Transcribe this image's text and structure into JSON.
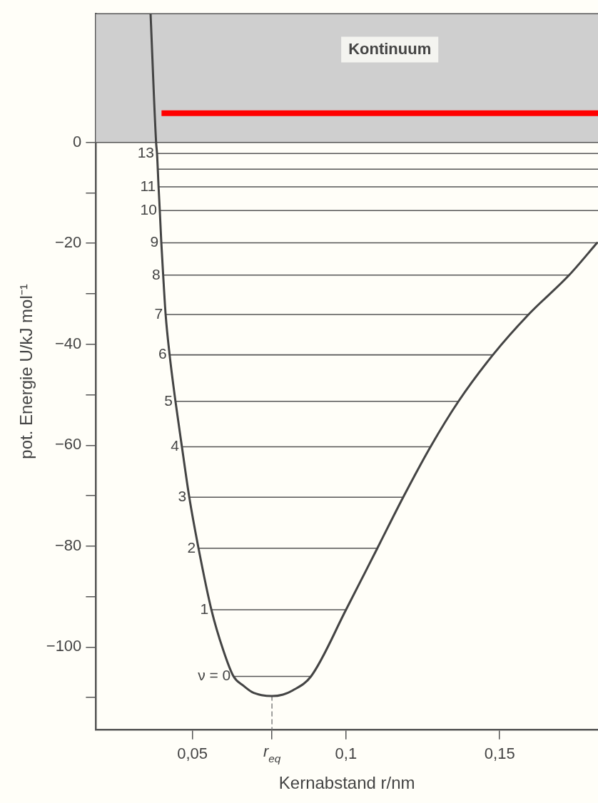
{
  "chart_data": {
    "type": "line",
    "xlabel": "Kernabstand r/nm",
    "ylabel": "pot. Energie U/kJ mol⁻¹",
    "xlim": [
      0.0186,
      0.182
    ],
    "ylim": [
      -116.3,
      25.5
    ],
    "xticks": [
      {
        "value": 0.05,
        "label": "0,05"
      },
      {
        "value": 0.0759,
        "label": "r$_{eq}$"
      },
      {
        "value": 0.1,
        "label": "0,1"
      },
      {
        "value": 0.15,
        "label": "0,15"
      }
    ],
    "yticks": [
      0,
      {
        "value": -10,
        "label": null
      },
      -20,
      {
        "value": -30,
        "label": null
      },
      -40,
      {
        "value": -50,
        "label": null
      },
      -60,
      {
        "value": -70,
        "label": null
      },
      -80,
      {
        "value": -90,
        "label": null
      },
      -100,
      {
        "value": -110,
        "label": null
      }
    ],
    "grid": false,
    "legend": false,
    "marker": "none",
    "bands": [
      {
        "axis": "y",
        "from": 0,
        "to": 25.5,
        "label": "Kontinuum",
        "color": "#cfcfcf"
      }
    ],
    "ref_lines": [
      {
        "axis": "y",
        "value": 5.8,
        "color": "#ff0000"
      }
    ],
    "series": [
      {
        "color": "#444444",
        "x": [
          0.0364,
          0.0382,
          0.0385,
          0.039,
          0.0394,
          0.0399,
          0.0405,
          0.0413,
          0.0426,
          0.0445,
          0.0466,
          0.049,
          0.052,
          0.0562,
          0.06,
          0.0634,
          0.0665,
          0.0694,
          0.0725,
          0.0759,
          0.0795,
          0.0826,
          0.0886,
          0.1,
          0.1102,
          0.1186,
          0.1275,
          0.1366,
          0.1478,
          0.1594,
          0.1726,
          0.1817
        ],
        "values": [
          25.5,
          0,
          -2.2,
          -8.8,
          -13.5,
          -19.9,
          -26.3,
          -34.1,
          -42.1,
          -51.3,
          -60.3,
          -70.3,
          -80.4,
          -92.6,
          -100.5,
          -105.8,
          -107.6,
          -108.9,
          -109.5,
          -109.7,
          -109.4,
          -108.6,
          -105.8,
          -92.6,
          -80.4,
          -70.3,
          -60.3,
          -51.3,
          -42.1,
          -34.1,
          -26.3,
          -19.9
        ]
      },
      {
        "color": "#888888",
        "line_style": "dashed",
        "x": [
          0.0759,
          0.0759
        ],
        "values": [
          -109.7,
          -116.3
        ]
      },
      {
        "name": "ν = 0",
        "color": "#555555",
        "x": [
          0.0634,
          0.0886
        ],
        "values": [
          -105.8,
          -105.8
        ]
      },
      {
        "name": "1",
        "color": "#555555",
        "x": [
          0.0562,
          0.1
        ],
        "values": [
          -92.6,
          -92.6
        ]
      },
      {
        "name": "2",
        "color": "#555555",
        "x": [
          0.052,
          0.1102
        ],
        "values": [
          -80.4,
          -80.4
        ]
      },
      {
        "name": "3",
        "color": "#555555",
        "x": [
          0.049,
          0.1186
        ],
        "values": [
          -70.3,
          -70.3
        ]
      },
      {
        "name": "4",
        "color": "#555555",
        "x": [
          0.0466,
          0.1275
        ],
        "values": [
          -60.3,
          -60.3
        ]
      },
      {
        "name": "5",
        "color": "#555555",
        "x": [
          0.0445,
          0.1366
        ],
        "values": [
          -51.3,
          -51.3
        ]
      },
      {
        "name": "6",
        "color": "#555555",
        "x": [
          0.0426,
          0.1478
        ],
        "values": [
          -42.1,
          -42.1
        ]
      },
      {
        "name": "7",
        "color": "#555555",
        "x": [
          0.0413,
          0.1594
        ],
        "values": [
          -34.1,
          -34.1
        ]
      },
      {
        "name": "8",
        "color": "#555555",
        "x": [
          0.0405,
          0.1726
        ],
        "values": [
          -26.3,
          -26.3
        ]
      },
      {
        "name": "9",
        "color": "#555555",
        "x": [
          0.0399,
          0.1817
        ],
        "values": [
          -19.9,
          -19.9
        ]
      },
      {
        "name": "10",
        "color": "#555555",
        "x": [
          0.0394,
          0.182
        ],
        "values": [
          -13.5,
          -13.5
        ]
      },
      {
        "name": "11",
        "color": "#555555",
        "x": [
          0.039,
          0.182
        ],
        "values": [
          -8.8,
          -8.8
        ]
      },
      {
        "color": "#555555",
        "x": [
          0.0387,
          0.182
        ],
        "values": [
          -5.3,
          -5.3
        ]
      },
      {
        "name": "13",
        "color": "#555555",
        "x": [
          0.0385,
          0.182
        ],
        "values": [
          -2.2,
          -2.2
        ]
      }
    ]
  }
}
